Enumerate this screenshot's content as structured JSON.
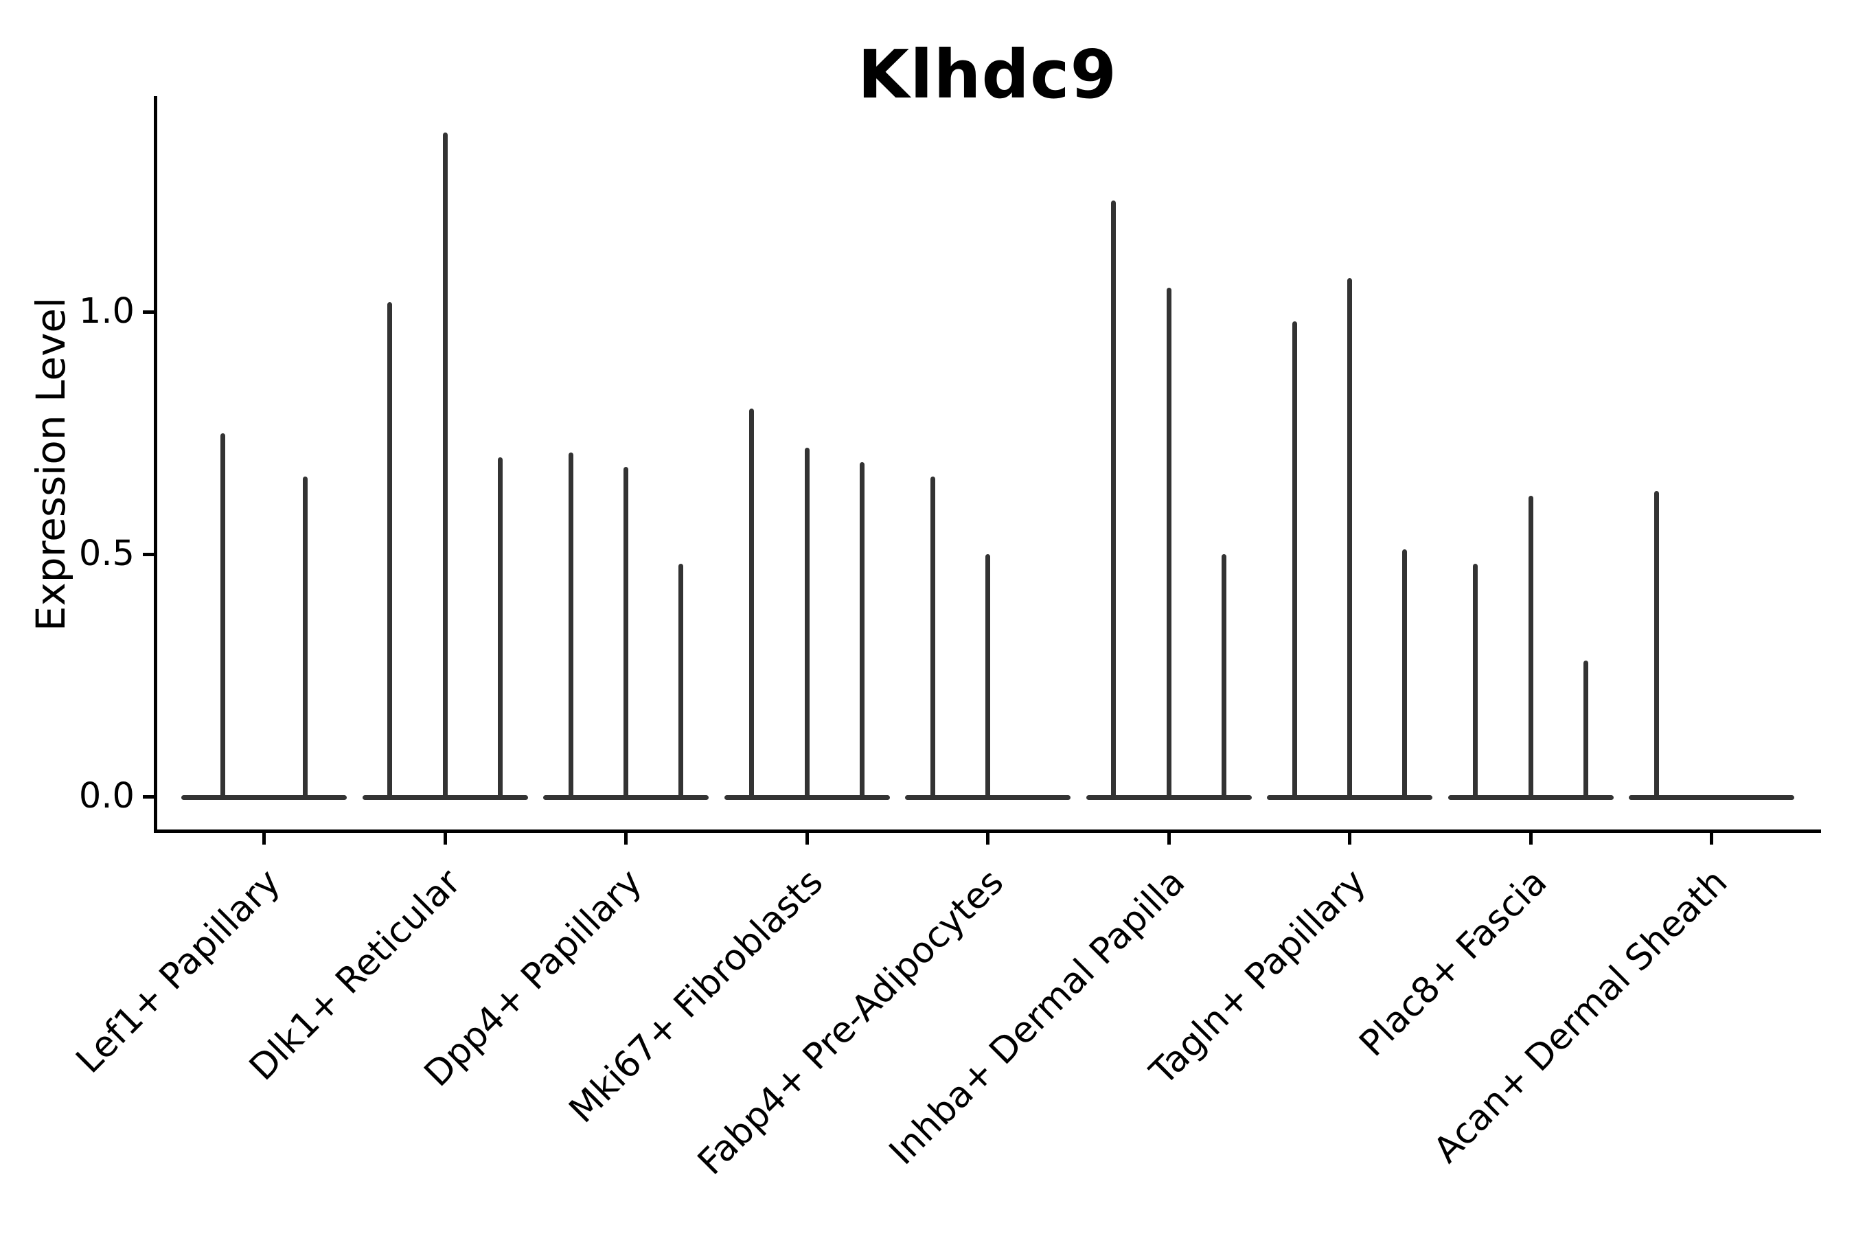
{
  "chart_data": {
    "type": "violin",
    "title": "Klhdc9",
    "xlabel": "",
    "ylabel": "Expression Level",
    "ytick_labels": [
      "0.0",
      "0.5",
      "1.0"
    ],
    "yticks": [
      0.0,
      0.5,
      1.0
    ],
    "ylim": [
      0.0,
      1.45
    ],
    "grid": false,
    "legend": "none",
    "colors": {
      "violin": "#333333",
      "axis": "#000000",
      "text": "#000000",
      "background": "#ffffff"
    },
    "categories": [
      "Lef1+ Papillary",
      "Dlk1+ Reticular",
      "Dpp4+ Papillary",
      "Mki67+ Fibroblasts",
      "Fabp4+ Pre-Adipocytes",
      "Inhba+ Dermal Papilla",
      "Tagln+ Papillary",
      "Plac8+ Fascia",
      "Acan+ Dermal Sheath"
    ],
    "groups": [
      {
        "category": "Lef1+ Papillary",
        "n_slots": 2,
        "spikes": [
          {
            "slot": 0,
            "peak": 0.75
          },
          {
            "slot": 1,
            "peak": 0.66
          }
        ]
      },
      {
        "category": "Dlk1+ Reticular",
        "n_slots": 3,
        "spikes": [
          {
            "slot": 0,
            "peak": 1.02
          },
          {
            "slot": 1,
            "peak": 1.37
          },
          {
            "slot": 2,
            "peak": 0.7
          }
        ]
      },
      {
        "category": "Dpp4+ Papillary",
        "n_slots": 3,
        "spikes": [
          {
            "slot": 0,
            "peak": 0.71
          },
          {
            "slot": 1,
            "peak": 0.68
          },
          {
            "slot": 2,
            "peak": 0.48
          }
        ]
      },
      {
        "category": "Mki67+ Fibroblasts",
        "n_slots": 3,
        "spikes": [
          {
            "slot": 0,
            "peak": 0.8
          },
          {
            "slot": 1,
            "peak": 0.72
          },
          {
            "slot": 2,
            "peak": 0.69
          }
        ]
      },
      {
        "category": "Fabp4+ Pre-Adipocytes",
        "n_slots": 3,
        "spikes": [
          {
            "slot": 0,
            "peak": 0.66
          },
          {
            "slot": 1,
            "peak": 0.5
          }
        ]
      },
      {
        "category": "Inhba+ Dermal Papilla",
        "n_slots": 3,
        "spikes": [
          {
            "slot": 0,
            "peak": 1.23
          },
          {
            "slot": 1,
            "peak": 1.05
          },
          {
            "slot": 2,
            "peak": 0.5
          }
        ]
      },
      {
        "category": "Tagln+ Papillary",
        "n_slots": 3,
        "spikes": [
          {
            "slot": 0,
            "peak": 0.98
          },
          {
            "slot": 1,
            "peak": 1.07
          },
          {
            "slot": 2,
            "peak": 0.51
          }
        ]
      },
      {
        "category": "Plac8+ Fascia",
        "n_slots": 3,
        "spikes": [
          {
            "slot": 0,
            "peak": 0.48
          },
          {
            "slot": 1,
            "peak": 0.62
          },
          {
            "slot": 2,
            "peak": 0.28
          }
        ]
      },
      {
        "category": "Acan+ Dermal Sheath",
        "n_slots": 3,
        "spikes": [
          {
            "slot": 0,
            "peak": 0.63
          }
        ]
      }
    ]
  }
}
